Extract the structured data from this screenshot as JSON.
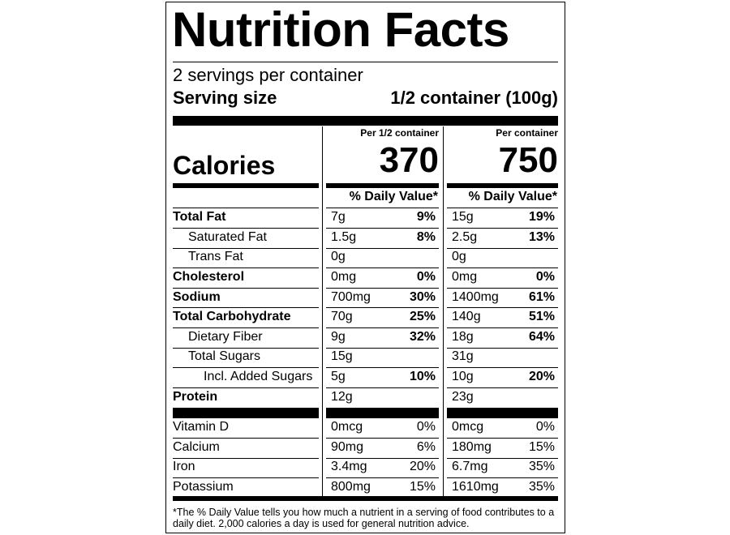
{
  "title": "Nutrition Facts",
  "servings": "2 servings per container",
  "serving_size": {
    "label": "Serving size",
    "value": "1/2 container (100g)"
  },
  "calories": {
    "label": "Calories",
    "columns": [
      {
        "header": "Per 1/2 container",
        "value": "370"
      },
      {
        "header": "Per container",
        "value": "750"
      }
    ]
  },
  "daily_value_header": [
    "% Daily Value*",
    "% Daily Value*"
  ],
  "nutrients": [
    {
      "name": "Total Fat",
      "bold": true,
      "indent": 0,
      "cells": [
        [
          "7g",
          "9%"
        ],
        [
          "15g",
          "19%"
        ]
      ]
    },
    {
      "name": "Saturated Fat",
      "bold": false,
      "indent": 1,
      "cells": [
        [
          "1.5g",
          "8%"
        ],
        [
          "2.5g",
          "13%"
        ]
      ]
    },
    {
      "name": "Trans Fat",
      "bold": false,
      "indent": 1,
      "cells": [
        [
          "0g"
        ],
        [
          "0g"
        ]
      ]
    },
    {
      "name": "Cholesterol",
      "bold": true,
      "indent": 0,
      "cells": [
        [
          "0mg",
          "0%"
        ],
        [
          "0mg",
          "0%"
        ]
      ]
    },
    {
      "name": "Sodium",
      "bold": true,
      "indent": 0,
      "cells": [
        [
          "700mg",
          "30%"
        ],
        [
          "1400mg",
          "61%"
        ]
      ]
    },
    {
      "name": "Total Carbohydrate",
      "bold": true,
      "indent": 0,
      "cells": [
        [
          "70g",
          "25%"
        ],
        [
          "140g",
          "51%"
        ]
      ]
    },
    {
      "name": "Dietary Fiber",
      "bold": false,
      "indent": 1,
      "cells": [
        [
          "9g",
          "32%"
        ],
        [
          "18g",
          "64%"
        ]
      ]
    },
    {
      "name": "Total Sugars",
      "bold": false,
      "indent": 1,
      "cells": [
        [
          "15g"
        ],
        [
          "31g"
        ]
      ]
    },
    {
      "name": "Incl. Added Sugars",
      "bold": false,
      "indent": 2,
      "cells": [
        [
          "5g",
          "10%"
        ],
        [
          "10g",
          "20%"
        ]
      ]
    },
    {
      "name": "Protein",
      "bold": true,
      "indent": 0,
      "cells": [
        [
          "12g"
        ],
        [
          "23g"
        ]
      ]
    }
  ],
  "vitamins": [
    {
      "name": "Vitamin D",
      "cells": [
        [
          "0mcg",
          "0%"
        ],
        [
          "0mcg",
          "0%"
        ]
      ]
    },
    {
      "name": "Calcium",
      "cells": [
        [
          "90mg",
          "6%"
        ],
        [
          "180mg",
          "15%"
        ]
      ]
    },
    {
      "name": "Iron",
      "cells": [
        [
          "3.4mg",
          "20%"
        ],
        [
          "6.7mg",
          "35%"
        ]
      ]
    },
    {
      "name": "Potassium",
      "cells": [
        [
          "800mg",
          "15%"
        ],
        [
          "1610mg",
          "35%"
        ]
      ]
    }
  ],
  "footnote": "*The % Daily Value tells you how much a nutrient in a serving of food contributes to a daily diet. 2,000 calories a day is used for general nutrition advice."
}
